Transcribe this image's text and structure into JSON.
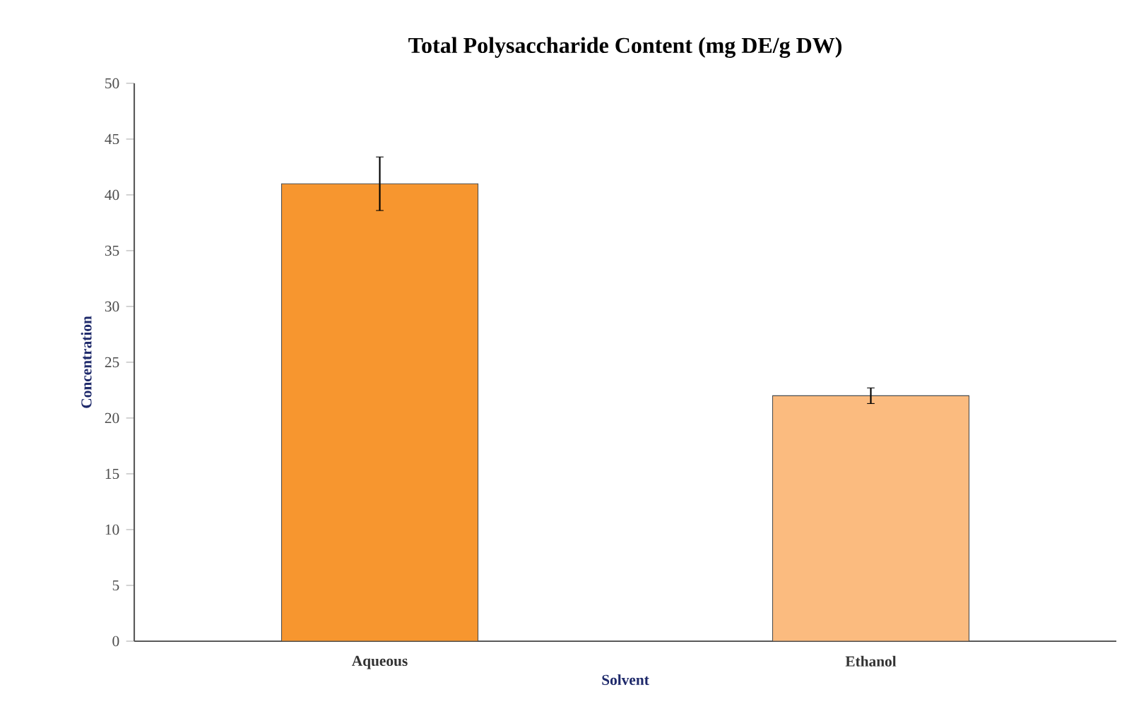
{
  "chart_data": {
    "type": "bar",
    "title": "Total Polysaccharide Content (mg DE/g DW)",
    "xlabel": "Solvent",
    "ylabel": "Concentration",
    "categories": [
      "Aqueous",
      "Ethanol"
    ],
    "values": [
      41.0,
      22.0
    ],
    "errors": [
      2.4,
      0.7
    ],
    "colors": [
      "#f7962f",
      "#fbbb7f"
    ],
    "ylim": [
      0,
      50
    ],
    "yticks": [
      0,
      5,
      10,
      15,
      20,
      25,
      30,
      35,
      40,
      45,
      50
    ]
  }
}
